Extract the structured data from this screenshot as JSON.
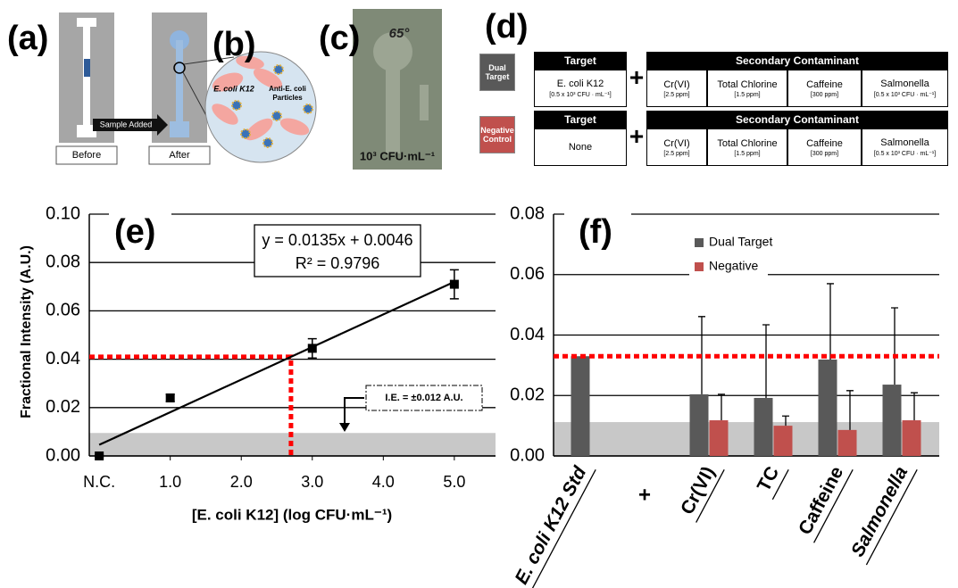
{
  "panel_a": {
    "label": "(a)",
    "before": "Before",
    "after": "After",
    "arrow": "Sample Added"
  },
  "panel_b": {
    "label": "(b)",
    "bacteria": "E. coli K12",
    "particles": [
      "Anti-E. coli",
      "Particles"
    ]
  },
  "panel_c": {
    "label": "(c)",
    "angle": "65°",
    "concentration": "10³ CFU·mL⁻¹"
  },
  "panel_d": {
    "label": "(d)",
    "rows": [
      {
        "group": "Dual Target",
        "color": "#595959",
        "target_header": "Target",
        "target": "E. coli K12",
        "target_conc": "[0.5 x 10³ CFU · mL⁻¹]",
        "operator": "+",
        "secondary_header": "Secondary Contaminant",
        "secondary": [
          {
            "name": "Cr(VI)",
            "conc": "[2.5 ppm]"
          },
          {
            "name": "Total Chlorine",
            "conc": "[1.5 ppm]"
          },
          {
            "name": "Caffeine",
            "conc": "[300 ppm]"
          },
          {
            "name": "Salmonella",
            "conc": "[0.5 x 10³ CFU · mL⁻¹]"
          }
        ]
      },
      {
        "group": "Negative Control",
        "color": "#c0504d",
        "target_header": "Target",
        "target": "None",
        "operator": "+",
        "secondary_header": "Secondary Contaminant",
        "secondary": [
          {
            "name": "Cr(VI)",
            "conc": "[2.5 ppm]"
          },
          {
            "name": "Total Chlorine",
            "conc": "[1.5 ppm]"
          },
          {
            "name": "Caffeine",
            "conc": "[300 ppm]"
          },
          {
            "name": "Salmonella",
            "conc": "[0.5 x 10³ CFU · mL⁻¹]"
          }
        ]
      }
    ]
  },
  "chart_data": [
    {
      "type": "scatter",
      "label": "(e)",
      "x_label": "[E. coli K12] (log CFU·mL⁻¹)",
      "y_label": "Fractional Intensity (A.U.)",
      "xlim": [
        -0.14,
        5.58
      ],
      "ylim": [
        0,
        0.1
      ],
      "xticks": [
        {
          "value": 0,
          "label": "N.C."
        },
        {
          "value": 1,
          "label": "1.0"
        },
        {
          "value": 2,
          "label": "2.0"
        },
        {
          "value": 3,
          "label": "3.0"
        },
        {
          "value": 4,
          "label": "4.0"
        },
        {
          "value": 5,
          "label": "5.0"
        }
      ],
      "yticks": [
        {
          "value": 0,
          "label": "0.00"
        },
        {
          "value": 0.02,
          "label": "0.02"
        },
        {
          "value": 0.04,
          "label": "0.04"
        },
        {
          "value": 0.06,
          "label": "0.06"
        },
        {
          "value": 0.08,
          "label": "0.08"
        },
        {
          "value": 0.1,
          "label": "0.10"
        }
      ],
      "grid": true,
      "series": [
        {
          "color": "#000000",
          "x": [
            0,
            1,
            3,
            5
          ],
          "values": [
            0,
            0.024,
            0.0445,
            0.071
          ],
          "errors": [
            0.0005,
            0.0015,
            0.004,
            0.006
          ]
        }
      ],
      "fit": {
        "equation": "y = 0.0135x + 0.0046",
        "r_squared": "R² = 0.9796",
        "color": "#000000",
        "x": [
          0,
          5
        ],
        "values": [
          0.0046,
          0.072
        ]
      },
      "threshold": {
        "color": "#ff0000",
        "x": 2.7,
        "value": 0.041
      },
      "noise_band": {
        "color": "#c8c8c8",
        "range": [
          0,
          0.0095
        ]
      },
      "annotation": "I.E. = ±0.012 A.U."
    },
    {
      "type": "bar",
      "label": "(f)",
      "operator": "+",
      "categories": [
        "E. coli K12 Std",
        "Cr(VI)",
        "TC",
        "Caffeine",
        "Salmonella"
      ],
      "ylim": [
        0,
        0.08
      ],
      "yticks": [
        {
          "value": 0,
          "label": "0.00"
        },
        {
          "value": 0.02,
          "label": "0.02"
        },
        {
          "value": 0.04,
          "label": "0.04"
        },
        {
          "value": 0.06,
          "label": "0.06"
        },
        {
          "value": 0.08,
          "label": "0.08"
        }
      ],
      "grid": true,
      "legend": "upper center",
      "series": [
        {
          "name": "Dual Target",
          "color": "#595959",
          "values": [
            0.033,
            0.0204,
            0.0192,
            0.0319,
            0.0236
          ],
          "errors": [
            null,
            0.0257,
            0.0242,
            0.0251,
            0.0254
          ]
        },
        {
          "name": "Negative",
          "color": "#c0504d",
          "values": [
            null,
            0.0118,
            0.01,
            0.0086,
            0.0118
          ],
          "errors": [
            null,
            0.0086,
            0.0032,
            0.013,
            0.0091
          ]
        }
      ],
      "threshold": {
        "color": "#ff0000",
        "value": 0.033
      },
      "noise_band": {
        "color": "#c8c8c8",
        "range": [
          0,
          0.0112
        ]
      }
    }
  ]
}
